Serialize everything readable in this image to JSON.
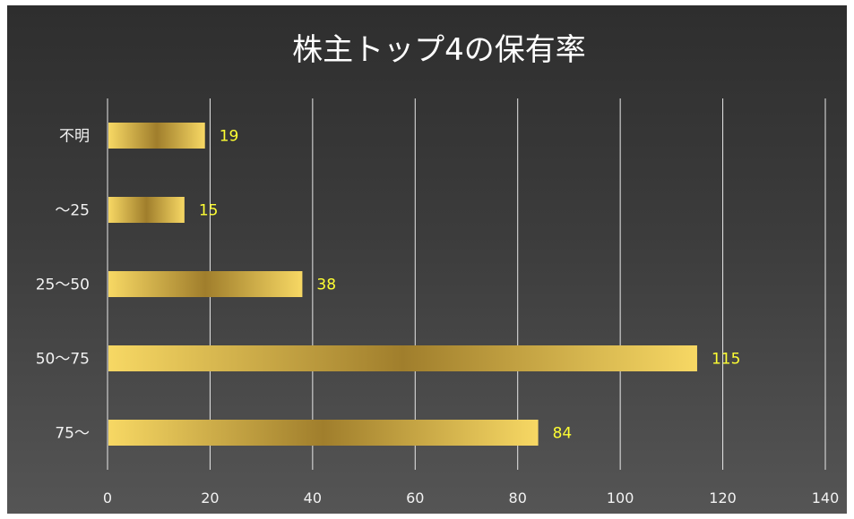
{
  "chart_data": {
    "type": "bar",
    "orientation": "horizontal",
    "title": "株主トップ4の保有率",
    "categories": [
      "不明",
      "～25",
      "25～50",
      "50～75",
      "75～"
    ],
    "values": [
      19,
      15,
      38,
      115,
      84
    ],
    "xlim": [
      0,
      140
    ],
    "x_ticks": [
      0,
      20,
      40,
      60,
      80,
      100,
      120,
      140
    ],
    "grid": true,
    "data_labels": true,
    "legend": "none",
    "colors": {
      "bar_light": "#f7d864",
      "bar_dark": "#a07e2c",
      "value_label": "#ffff33",
      "background_top": "#2e2e2e",
      "background_bottom": "#555555",
      "gridline": "#e8e8e8"
    }
  }
}
